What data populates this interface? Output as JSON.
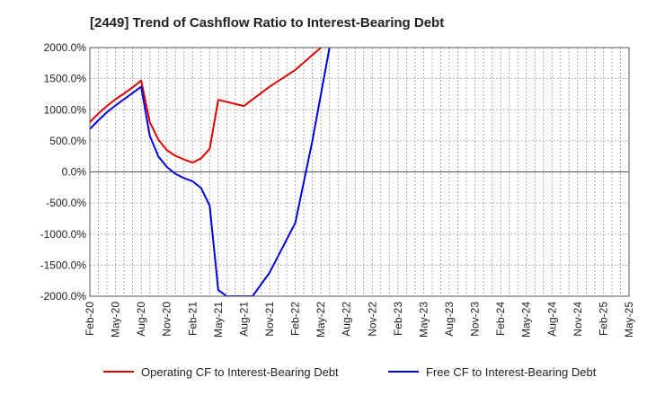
{
  "chart_data": {
    "type": "line",
    "title": "[2449]  Trend of Cashflow Ratio to Interest-Bearing Debt",
    "xlabel": "",
    "ylabel": "",
    "ylim": [
      -2000,
      2000
    ],
    "y_ticks": [
      "2000.0%",
      "1500.0%",
      "1000.0%",
      "500.0%",
      "0.0%",
      "-500.0%",
      "-1000.0%",
      "-1500.0%",
      "-2000.0%"
    ],
    "x_ticks": [
      "Feb-20",
      "May-20",
      "Aug-20",
      "Nov-20",
      "Feb-21",
      "May-21",
      "Aug-21",
      "Nov-21",
      "Feb-22",
      "May-22",
      "Aug-22",
      "Nov-22",
      "Feb-23",
      "May-23",
      "Aug-23",
      "Nov-23",
      "Feb-24",
      "May-24",
      "Aug-24",
      "Nov-24",
      "Feb-25",
      "May-25"
    ],
    "grid": true,
    "legend_position": "bottom",
    "series": [
      {
        "name": "Operating CF to Interest-Bearing Debt",
        "color": "#e00000",
        "points": [
          [
            "Feb-20",
            800
          ],
          [
            "Mar-20",
            940
          ],
          [
            "Apr-20",
            1060
          ],
          [
            "May-20",
            1170
          ],
          [
            "Jun-20",
            1260
          ],
          [
            "Jul-20",
            1360
          ],
          [
            "Aug-20",
            1470
          ],
          [
            "Sep-20",
            800
          ],
          [
            "Oct-20",
            520
          ],
          [
            "Nov-20",
            350
          ],
          [
            "Dec-20",
            260
          ],
          [
            "Jan-21",
            200
          ],
          [
            "Feb-21",
            150
          ],
          [
            "Mar-21",
            220
          ],
          [
            "Apr-21",
            370
          ],
          [
            "May-21",
            1160
          ],
          [
            "Aug-21",
            1060
          ],
          [
            "Nov-21",
            1370
          ],
          [
            "Feb-22",
            1640
          ],
          [
            "May-22",
            2000
          ]
        ]
      },
      {
        "name": "Free CF to Interest-Bearing Debt",
        "color": "#0000e0",
        "points": [
          [
            "Feb-20",
            690
          ],
          [
            "Mar-20",
            830
          ],
          [
            "Apr-20",
            960
          ],
          [
            "May-20",
            1070
          ],
          [
            "Jun-20",
            1170
          ],
          [
            "Jul-20",
            1270
          ],
          [
            "Aug-20",
            1370
          ],
          [
            "Sep-20",
            580
          ],
          [
            "Oct-20",
            250
          ],
          [
            "Nov-20",
            80
          ],
          [
            "Dec-20",
            -30
          ],
          [
            "Jan-21",
            -100
          ],
          [
            "Feb-21",
            -150
          ],
          [
            "Mar-21",
            -260
          ],
          [
            "Apr-21",
            -540
          ],
          [
            "May-21",
            -1900
          ],
          [
            "Jun-21",
            -2000
          ],
          [
            "Sep-21",
            -2000
          ],
          [
            "Nov-21",
            -1620
          ],
          [
            "Feb-22",
            -820
          ],
          [
            "Apr-22",
            500
          ],
          [
            "Jun-22",
            2000
          ]
        ]
      }
    ]
  }
}
